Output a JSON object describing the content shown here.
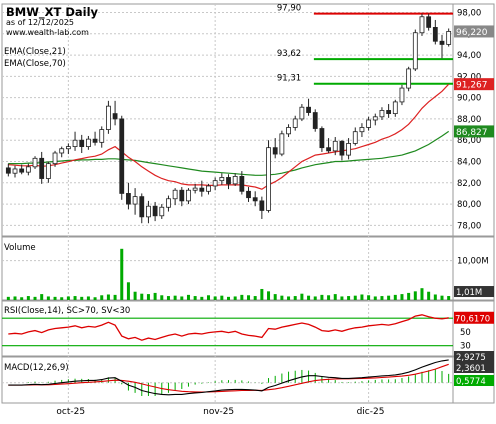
{
  "chart_data": {
    "type": "financial-multipane",
    "title": "BMW_XT Daily",
    "subtitle": "as of 12/12/2025",
    "source": "www.wealth-lab.com",
    "x_labels": [
      "oct-25",
      "nov-25",
      "dic-25"
    ],
    "colors": {
      "up": "#00aa00",
      "down": "#222222",
      "ema21": "#dd2222",
      "ema70": "#1f8a1f",
      "resistance": "#dd0000",
      "support": "#00aa00",
      "volume": "#00aa00",
      "rsi": "#dd0000",
      "macd": "#000000",
      "signal": "#dd0000",
      "histogram": "#00aa00",
      "badge_last": "#888888",
      "grid": "#c8c8c8"
    },
    "price": {
      "ylim": [
        77,
        98.8
      ],
      "ticks": [
        "98,00",
        "96,00",
        "94,00",
        "92,00",
        "90,00",
        "88,00",
        "86,00",
        "84,00",
        "82,00",
        "80,00",
        "78,00"
      ],
      "tick_values": [
        98,
        96,
        94,
        92,
        90,
        88,
        86,
        84,
        82,
        80,
        78
      ],
      "indicator_labels": [
        "EMA(Close,21)",
        "EMA(Close,70)"
      ],
      "levels": [
        {
          "label": "97,90",
          "value": 97.9,
          "color": "#dd0000",
          "from": 0.625
        },
        {
          "label": "93,62",
          "value": 93.62,
          "color": "#00aa00",
          "from": 0.625
        },
        {
          "label": "91,31",
          "value": 91.31,
          "color": "#00aa00",
          "from": 0.625
        }
      ],
      "badges": [
        {
          "label": "96,220",
          "value": 96.22,
          "kind": "last"
        },
        {
          "label": "91,267",
          "value": 91.267,
          "kind": "ema21"
        },
        {
          "label": "86,827",
          "value": 86.827,
          "kind": "ema70"
        }
      ],
      "candles": [
        [
          83.4,
          83.8,
          82.6,
          82.9
        ],
        [
          82.9,
          83.6,
          82.5,
          83.3
        ],
        [
          83.3,
          83.7,
          82.8,
          83.0
        ],
        [
          83.0,
          83.8,
          82.7,
          83.5
        ],
        [
          83.5,
          84.5,
          83.3,
          84.3
        ],
        [
          84.3,
          84.9,
          81.9,
          82.4
        ],
        [
          82.4,
          84.0,
          82.0,
          83.8
        ],
        [
          83.8,
          85.0,
          83.5,
          84.8
        ],
        [
          84.8,
          85.4,
          84.4,
          85.2
        ],
        [
          85.2,
          85.7,
          84.7,
          85.4
        ],
        [
          85.4,
          86.8,
          85.0,
          86.0
        ],
        [
          86.0,
          86.5,
          84.8,
          85.4
        ],
        [
          85.4,
          86.4,
          85.1,
          86.1
        ],
        [
          86.1,
          86.8,
          85.5,
          85.8
        ],
        [
          85.8,
          87.3,
          85.3,
          87.0
        ],
        [
          87.0,
          89.7,
          86.6,
          89.2
        ],
        [
          88.5,
          89.7,
          87.4,
          88.0
        ],
        [
          88.0,
          88.3,
          80.4,
          81.0
        ],
        [
          81.0,
          82.0,
          79.5,
          80.0
        ],
        [
          80.0,
          81.5,
          79.0,
          80.7
        ],
        [
          80.7,
          81.0,
          78.2,
          78.8
        ],
        [
          78.8,
          80.3,
          78.2,
          79.8
        ],
        [
          79.8,
          80.2,
          78.4,
          78.9
        ],
        [
          78.9,
          80.0,
          78.6,
          79.7
        ],
        [
          79.7,
          80.8,
          79.3,
          80.5
        ],
        [
          80.5,
          81.5,
          79.9,
          81.3
        ],
        [
          81.3,
          81.6,
          79.8,
          80.3
        ],
        [
          80.3,
          81.5,
          80.0,
          81.3
        ],
        [
          81.3,
          81.9,
          81.0,
          81.5
        ],
        [
          81.5,
          82.2,
          80.7,
          81.2
        ],
        [
          81.2,
          81.9,
          80.9,
          81.7
        ],
        [
          81.7,
          82.5,
          81.3,
          82.2
        ],
        [
          82.2,
          82.9,
          81.8,
          82.5
        ],
        [
          82.5,
          82.8,
          81.4,
          81.9
        ],
        [
          81.9,
          82.9,
          81.7,
          82.6
        ],
        [
          82.6,
          83.1,
          80.9,
          81.2
        ],
        [
          81.2,
          81.6,
          80.2,
          80.6
        ],
        [
          80.6,
          81.2,
          79.8,
          80.3
        ],
        [
          80.3,
          80.7,
          78.6,
          79.4
        ],
        [
          79.4,
          86.0,
          79.2,
          85.3
        ],
        [
          85.3,
          86.2,
          84.3,
          84.7
        ],
        [
          84.7,
          86.9,
          84.5,
          86.6
        ],
        [
          86.6,
          87.5,
          86.3,
          87.2
        ],
        [
          87.2,
          88.3,
          86.9,
          88.0
        ],
        [
          88.0,
          89.4,
          87.8,
          89.1
        ],
        [
          89.1,
          89.9,
          88.3,
          88.6
        ],
        [
          88.6,
          88.9,
          86.8,
          87.1
        ],
        [
          87.1,
          87.3,
          84.9,
          85.3
        ],
        [
          85.3,
          86.2,
          84.8,
          85.0
        ],
        [
          85.0,
          86.3,
          84.6,
          85.9
        ],
        [
          85.9,
          86.0,
          84.1,
          84.6
        ],
        [
          84.6,
          86.2,
          84.2,
          85.7
        ],
        [
          85.7,
          87.2,
          85.5,
          86.8
        ],
        [
          86.8,
          87.6,
          86.3,
          87.2
        ],
        [
          87.2,
          88.2,
          86.9,
          87.9
        ],
        [
          87.9,
          88.5,
          87.4,
          88.2
        ],
        [
          88.2,
          89.1,
          87.9,
          88.8
        ],
        [
          88.8,
          89.4,
          88.1,
          88.5
        ],
        [
          88.5,
          89.8,
          88.2,
          89.6
        ],
        [
          89.6,
          91.2,
          89.3,
          90.9
        ],
        [
          90.9,
          92.9,
          90.6,
          92.7
        ],
        [
          92.7,
          96.4,
          92.5,
          96.1
        ],
        [
          96.1,
          97.9,
          95.8,
          97.6
        ],
        [
          97.6,
          97.9,
          96.3,
          96.6
        ],
        [
          96.6,
          97.3,
          95.0,
          95.3
        ],
        [
          95.3,
          95.9,
          93.7,
          95.0
        ],
        [
          95.0,
          96.5,
          94.8,
          96.22
        ]
      ],
      "ema21": [
        83.7,
        83.65,
        83.6,
        83.6,
        83.65,
        83.55,
        83.6,
        83.7,
        83.85,
        83.98,
        84.16,
        84.27,
        84.4,
        84.5,
        84.7,
        85.1,
        85.4,
        84.9,
        84.4,
        84.0,
        83.5,
        83.1,
        82.7,
        82.4,
        82.2,
        82.1,
        81.9,
        81.8,
        81.8,
        81.8,
        81.75,
        81.75,
        81.8,
        81.8,
        81.8,
        81.8,
        81.7,
        81.6,
        81.4,
        81.8,
        82.1,
        82.5,
        83.0,
        83.5,
        84.0,
        84.3,
        84.6,
        84.7,
        84.8,
        84.9,
        85.0,
        85.1,
        85.2,
        85.4,
        85.6,
        85.8,
        86.1,
        86.3,
        86.6,
        87.0,
        87.5,
        88.2,
        89.0,
        89.6,
        90.1,
        90.6,
        91.267
      ],
      "ema70": [
        83.8,
        83.8,
        83.8,
        83.85,
        83.85,
        83.9,
        83.95,
        84.0,
        84.05,
        84.1,
        84.1,
        84.15,
        84.15,
        84.2,
        84.2,
        84.25,
        84.25,
        84.2,
        84.15,
        84.1,
        84.0,
        83.9,
        83.8,
        83.7,
        83.6,
        83.5,
        83.4,
        83.3,
        83.2,
        83.1,
        83.05,
        83.0,
        82.95,
        82.9,
        82.85,
        82.8,
        82.75,
        82.7,
        82.7,
        82.75,
        82.8,
        82.9,
        83.05,
        83.2,
        83.4,
        83.55,
        83.7,
        83.8,
        83.9,
        84.0,
        84.0,
        84.05,
        84.1,
        84.15,
        84.2,
        84.25,
        84.3,
        84.4,
        84.5,
        84.6,
        84.8,
        85.0,
        85.3,
        85.6,
        86.0,
        86.4,
        86.827
      ]
    },
    "volume": {
      "label": "Volume",
      "ylim": [
        0,
        16
      ],
      "ticks": [
        "10,00M"
      ],
      "tick_values": [
        10
      ],
      "badge": "1,01M",
      "badge_value": 1.01,
      "values": [
        0.8,
        0.9,
        0.7,
        1.0,
        0.8,
        1.5,
        0.9,
        0.8,
        0.7,
        0.9,
        1.0,
        0.8,
        0.9,
        0.7,
        1.2,
        1.4,
        1.3,
        13.0,
        4.5,
        2.1,
        1.6,
        1.5,
        1.8,
        1.2,
        1.0,
        1.1,
        0.9,
        1.3,
        1.0,
        0.8,
        1.2,
        0.9,
        1.1,
        0.8,
        0.9,
        1.3,
        1.2,
        1.0,
        2.8,
        2.2,
        1.5,
        1.1,
        0.9,
        1.0,
        1.6,
        1.1,
        0.9,
        1.3,
        1.2,
        1.5,
        0.9,
        1.0,
        1.1,
        1.4,
        1.2,
        0.9,
        1.0,
        1.1,
        1.3,
        1.5,
        1.8,
        2.2,
        3.0,
        2.1,
        1.4,
        1.1,
        1.01
      ]
    },
    "rsi": {
      "label": "RSI(Close,14), SC>70, SV<30",
      "ylim": [
        15,
        95
      ],
      "ticks": [
        "50",
        "30"
      ],
      "tick_values": [
        50,
        30
      ],
      "bands": [
        70,
        30
      ],
      "badge": "70,6170",
      "badge_value": 70.617,
      "values": [
        47,
        48,
        47,
        50,
        52,
        49,
        53,
        55,
        56,
        57,
        59,
        56,
        58,
        57,
        60,
        64,
        60,
        44,
        40,
        42,
        38,
        41,
        39,
        42,
        45,
        47,
        44,
        47,
        48,
        47,
        49,
        50,
        51,
        49,
        51,
        47,
        45,
        44,
        42,
        55,
        54,
        57,
        59,
        61,
        63,
        61,
        57,
        52,
        51,
        53,
        51,
        54,
        56,
        57,
        59,
        60,
        61,
        60,
        62,
        65,
        68,
        73,
        75,
        72,
        70,
        69,
        70.617
      ]
    },
    "macd": {
      "label": "MACD(12,26,9)",
      "ylim": [
        -2.6,
        3.3
      ],
      "badges": [
        {
          "label": "2,9275",
          "value": 2.9275
        },
        {
          "label": "2,3601",
          "value": 2.3601
        },
        {
          "label": "0,5774",
          "value": 0.5774
        }
      ],
      "macd": [
        -0.3,
        -0.3,
        -0.3,
        -0.25,
        -0.2,
        -0.25,
        -0.2,
        -0.1,
        0.0,
        0.1,
        0.2,
        0.25,
        0.3,
        0.3,
        0.4,
        0.6,
        0.65,
        0.2,
        -0.3,
        -0.6,
        -1.0,
        -1.2,
        -1.4,
        -1.5,
        -1.55,
        -1.5,
        -1.5,
        -1.4,
        -1.3,
        -1.25,
        -1.15,
        -1.05,
        -0.95,
        -0.9,
        -0.85,
        -0.85,
        -0.9,
        -0.95,
        -1.05,
        -0.6,
        -0.35,
        -0.05,
        0.25,
        0.5,
        0.75,
        0.9,
        0.9,
        0.8,
        0.7,
        0.65,
        0.55,
        0.55,
        0.6,
        0.65,
        0.72,
        0.8,
        0.88,
        0.93,
        1.0,
        1.15,
        1.35,
        1.65,
        2.0,
        2.3,
        2.6,
        2.8,
        2.9275
      ],
      "signal": [
        -0.3,
        -0.3,
        -0.3,
        -0.29,
        -0.27,
        -0.27,
        -0.26,
        -0.23,
        -0.18,
        -0.12,
        -0.06,
        0.0,
        0.06,
        0.11,
        0.17,
        0.25,
        0.32,
        0.3,
        0.2,
        0.05,
        -0.15,
        -0.35,
        -0.55,
        -0.75,
        -0.9,
        -1.0,
        -1.1,
        -1.15,
        -1.18,
        -1.19,
        -1.18,
        -1.15,
        -1.11,
        -1.07,
        -1.03,
        -1.0,
        -0.98,
        -0.97,
        -0.98,
        -0.9,
        -0.79,
        -0.64,
        -0.46,
        -0.27,
        -0.07,
        0.12,
        0.27,
        0.38,
        0.44,
        0.48,
        0.5,
        0.51,
        0.53,
        0.55,
        0.58,
        0.62,
        0.67,
        0.72,
        0.78,
        0.85,
        0.95,
        1.1,
        1.3,
        1.5,
        1.75,
        2.05,
        2.3601
      ]
    }
  }
}
